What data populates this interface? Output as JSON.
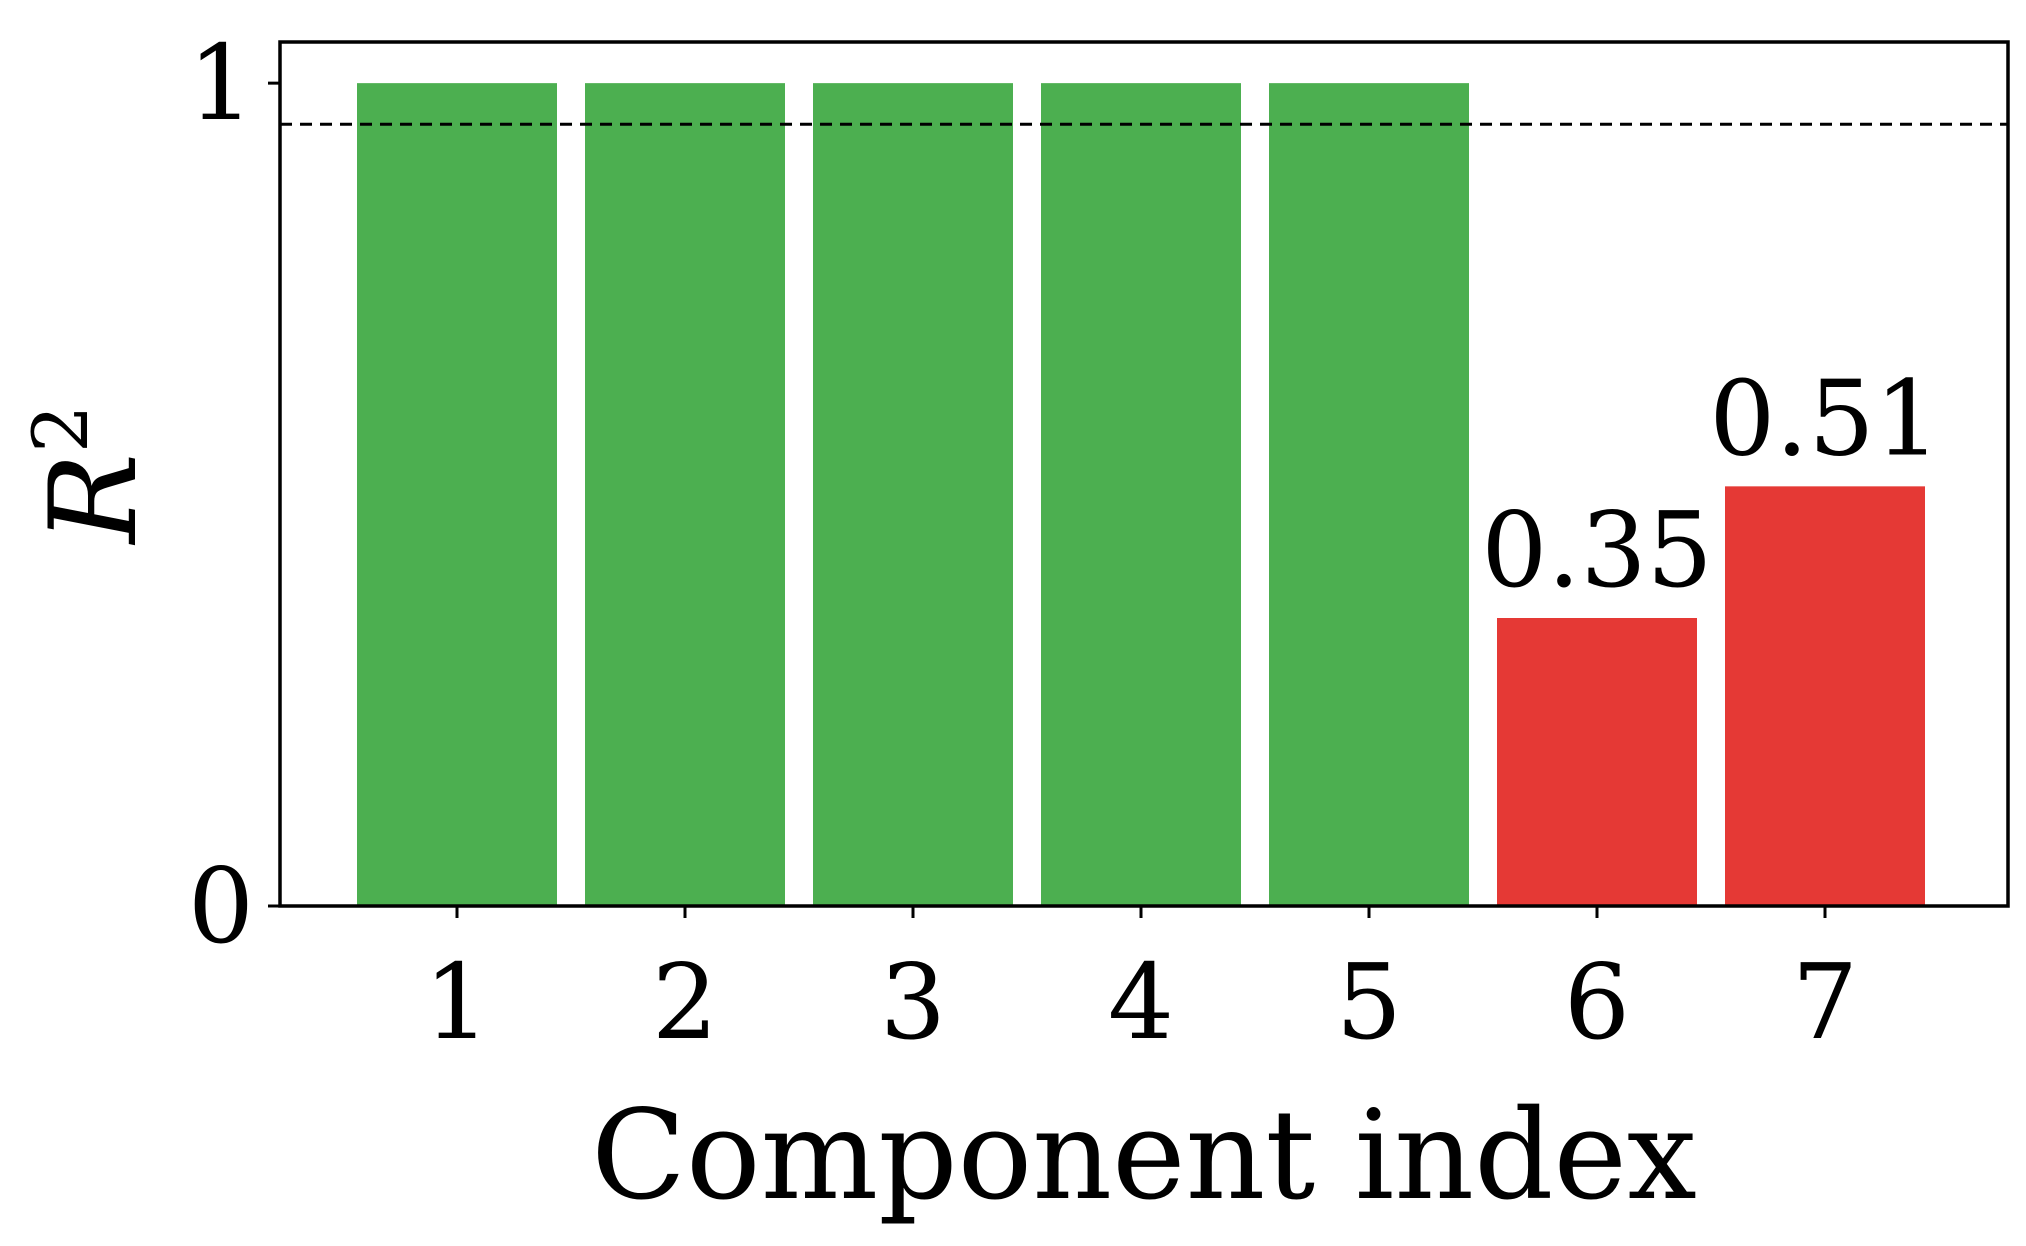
{
  "chart_data": {
    "type": "bar",
    "categories": [
      "1",
      "2",
      "3",
      "4",
      "5",
      "6",
      "7"
    ],
    "values": [
      1.0,
      1.0,
      1.0,
      1.0,
      1.0,
      0.35,
      0.51
    ],
    "data_labels": [
      "",
      "",
      "",
      "",
      "",
      "0.35",
      "0.51"
    ],
    "bar_colors": [
      "#4caf50",
      "#4caf50",
      "#4caf50",
      "#4caf50",
      "#4caf50",
      "#e53935",
      "#e53935"
    ],
    "threshold": 0.95,
    "threshold_style": "dashed",
    "threshold_color": "#000000",
    "title": "",
    "xlabel": "Component index",
    "ylabel": "R",
    "ylabel_superscript": "2",
    "ylim": [
      0,
      1.05
    ],
    "yticks": [
      0,
      1
    ],
    "ytick_labels": [
      "0",
      "1"
    ],
    "grid": false,
    "legend": "none"
  }
}
